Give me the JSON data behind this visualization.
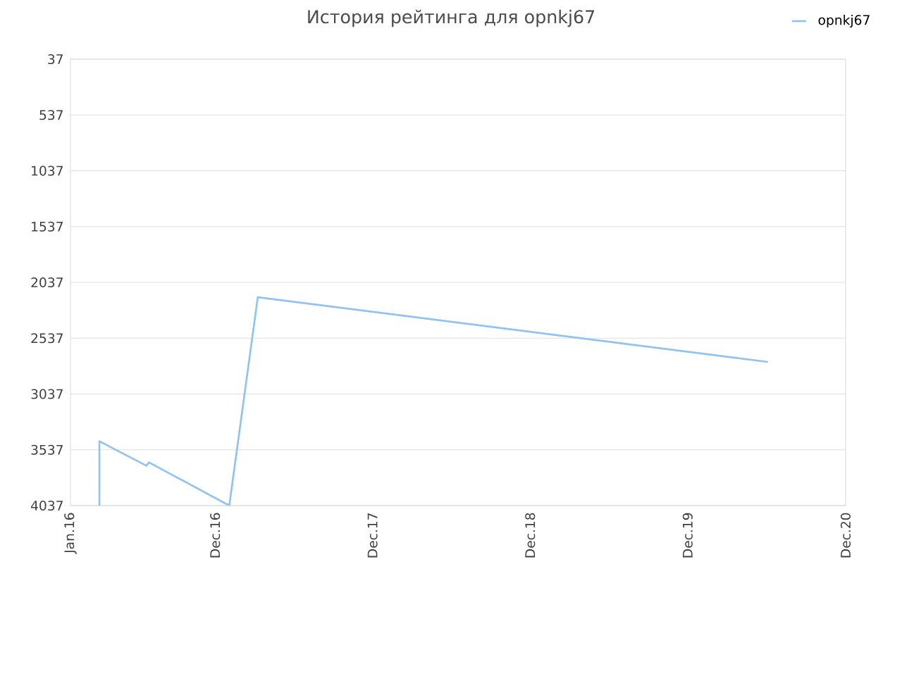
{
  "chart_data": {
    "type": "line",
    "title": "История рейтинга для opnkj67",
    "x": [
      "2016-03-08",
      "2016-03-08",
      "2016-06-25",
      "2016-07-01",
      "2017-01-03",
      "2017-03-10",
      "2020-06-04"
    ],
    "series": [
      {
        "name": "opnkj67",
        "color": "#90c3f0",
        "values": [
          4037,
          3460,
          3680,
          3650,
          4037,
          2170,
          2750
        ]
      }
    ],
    "xlim": [
      "2016-01-01",
      "2020-12-01"
    ],
    "xticks": [
      {
        "value": "2016-01-01",
        "label": "Jan.16"
      },
      {
        "value": "2016-12-01",
        "label": "Dec.16"
      },
      {
        "value": "2017-12-01",
        "label": "Dec.17"
      },
      {
        "value": "2018-12-01",
        "label": "Dec.18"
      },
      {
        "value": "2019-12-01",
        "label": "Dec.19"
      },
      {
        "value": "2020-12-01",
        "label": "Dec.20"
      }
    ],
    "ylim": [
      4037,
      37
    ],
    "yticks": [
      37,
      537,
      1037,
      1537,
      2037,
      2537,
      3037,
      3537,
      4037
    ],
    "grid": "y",
    "legend": "top right",
    "marker": "none",
    "line_style": "solid"
  }
}
